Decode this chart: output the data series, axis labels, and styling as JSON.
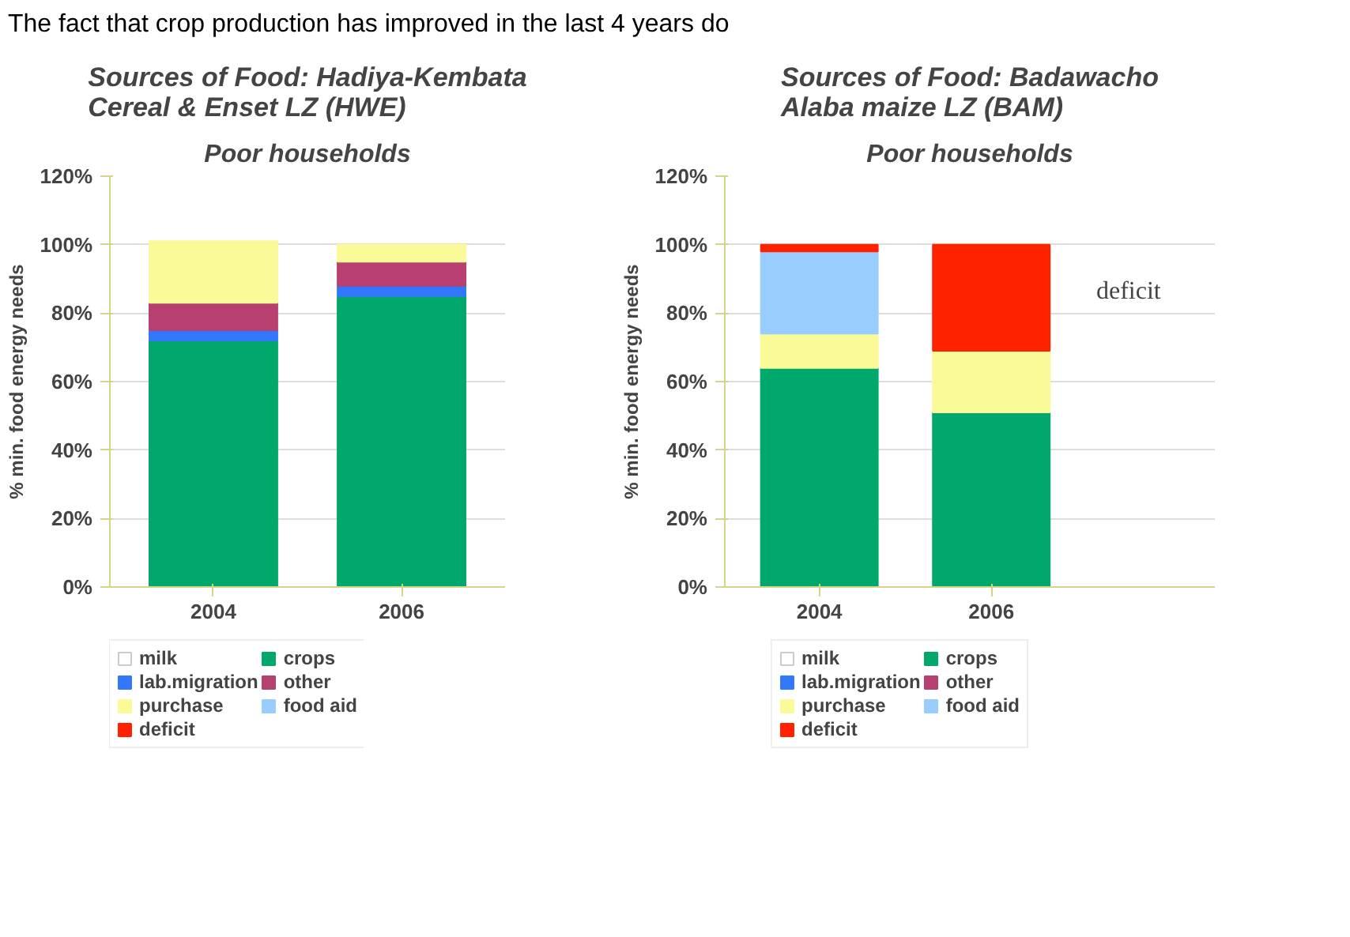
{
  "chart_data": [
    {
      "type": "bar",
      "title": "Sources of Food: Hadiya-Kembata Cereal & Enset LZ (HWE)",
      "subtitle": "Poor households",
      "ylabel": "% min. food energy needs",
      "categories": [
        "2004",
        "2006"
      ],
      "stacked": true,
      "series": [
        {
          "name": "milk",
          "color": "#ffffff",
          "values": [
            null,
            null
          ]
        },
        {
          "name": "crops",
          "color": "#00a86b",
          "values": [
            72,
            85
          ]
        },
        {
          "name": "lab.migration",
          "color": "#3377ff",
          "values": [
            3,
            3
          ]
        },
        {
          "name": "other",
          "color": "#b84070",
          "values": [
            8,
            7
          ]
        },
        {
          "name": "purchase",
          "color": "#fafa98",
          "values": [
            18,
            5
          ]
        },
        {
          "name": "food aid",
          "color": "#99ccff",
          "values": [
            null,
            null
          ]
        },
        {
          "name": "deficit",
          "color": "#ff2200",
          "values": [
            null,
            null
          ]
        }
      ],
      "ylim": [
        0,
        120
      ],
      "yticks": [
        {
          "value": 0,
          "label": "0%"
        },
        {
          "value": 20,
          "label": "20%"
        },
        {
          "value": 40,
          "label": "40%"
        },
        {
          "value": 60,
          "label": "60%"
        },
        {
          "value": 80,
          "label": "80%"
        },
        {
          "value": 100,
          "label": "100%"
        },
        {
          "value": 120,
          "label": "120%"
        }
      ],
      "grid": "y",
      "legend": "bottom",
      "annotations": [
        "The fact that crop production has improved in the last 4 years do"
      ]
    },
    {
      "type": "bar",
      "title": "Sources of Food: Badawacho Alaba maize LZ (BAM)",
      "subtitle": "Poor households",
      "ylabel": "% min. food energy needs",
      "categories": [
        "2004",
        "2006"
      ],
      "stacked": true,
      "series": [
        {
          "name": "milk",
          "color": "#ffffff",
          "values": [
            null,
            null
          ]
        },
        {
          "name": "crops",
          "color": "#00a86b",
          "values": [
            64,
            51
          ]
        },
        {
          "name": "lab.migration",
          "color": "#3377ff",
          "values": [
            null,
            null
          ]
        },
        {
          "name": "other",
          "color": "#b84070",
          "values": [
            null,
            null
          ]
        },
        {
          "name": "purchase",
          "color": "#fafa98",
          "values": [
            10,
            18
          ]
        },
        {
          "name": "food aid",
          "color": "#99ccff",
          "values": [
            24,
            null
          ]
        },
        {
          "name": "deficit",
          "color": "#ff2200",
          "values": [
            2,
            31
          ]
        }
      ],
      "ylim": [
        0,
        120
      ],
      "yticks": [
        {
          "value": 0,
          "label": "0%"
        },
        {
          "value": 20,
          "label": "20%"
        },
        {
          "value": 40,
          "label": "40%"
        },
        {
          "value": 60,
          "label": "60%"
        },
        {
          "value": 80,
          "label": "80%"
        },
        {
          "value": 100,
          "label": "100%"
        },
        {
          "value": 120,
          "label": "120%"
        }
      ],
      "grid": "y",
      "legend": "bottom",
      "annotations": [
        "deficit"
      ]
    }
  ]
}
